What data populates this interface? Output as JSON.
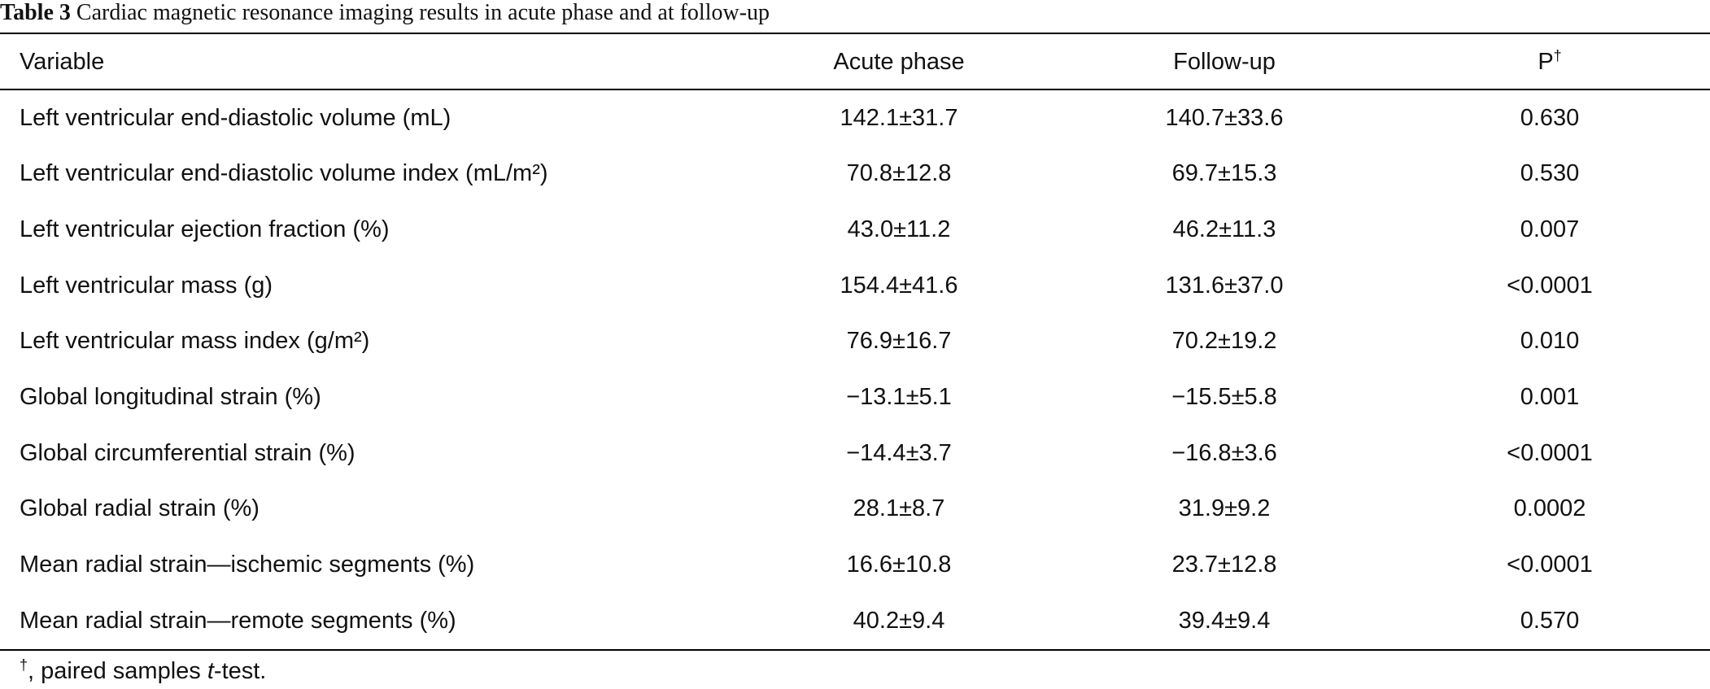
{
  "caption": {
    "label": "Table 3",
    "text": "Cardiac magnetic resonance imaging results in acute phase and at follow-up"
  },
  "header": {
    "variable": "Variable",
    "acute": "Acute phase",
    "followup": "Follow-up",
    "p": "P",
    "p_mark": "†"
  },
  "rows": [
    {
      "variable": "Left ventricular end-diastolic volume (mL)",
      "acute": "142.1±31.7",
      "followup": "140.7±33.6",
      "p": "0.630"
    },
    {
      "variable": "Left ventricular end-diastolic volume index (mL/m²)",
      "acute": "70.8±12.8",
      "followup": "69.7±15.3",
      "p": "0.530"
    },
    {
      "variable": "Left ventricular ejection fraction (%)",
      "acute": "43.0±11.2",
      "followup": "46.2±11.3",
      "p": "0.007"
    },
    {
      "variable": "Left ventricular mass (g)",
      "acute": "154.4±41.6",
      "followup": "131.6±37.0",
      "p": "<0.0001"
    },
    {
      "variable": "Left ventricular mass index (g/m²)",
      "acute": "76.9±16.7",
      "followup": "70.2±19.2",
      "p": "0.010"
    },
    {
      "variable": "Global longitudinal strain (%)",
      "acute": "−13.1±5.1",
      "followup": "−15.5±5.8",
      "p": "0.001"
    },
    {
      "variable": "Global circumferential strain (%)",
      "acute": "−14.4±3.7",
      "followup": "−16.8±3.6",
      "p": "<0.0001"
    },
    {
      "variable": "Global radial strain (%)",
      "acute": "28.1±8.7",
      "followup": "31.9±9.2",
      "p": "0.0002"
    },
    {
      "variable": "Mean radial strain—ischemic segments (%)",
      "acute": "16.6±10.8",
      "followup": "23.7±12.8",
      "p": "<0.0001"
    },
    {
      "variable": "Mean radial strain—remote segments (%)",
      "acute": "40.2±9.4",
      "followup": "39.4±9.4",
      "p": "0.570"
    }
  ],
  "footnote": {
    "mark": "†",
    "text_before": ", paired samples ",
    "italic": "t",
    "text_after": "-test."
  }
}
